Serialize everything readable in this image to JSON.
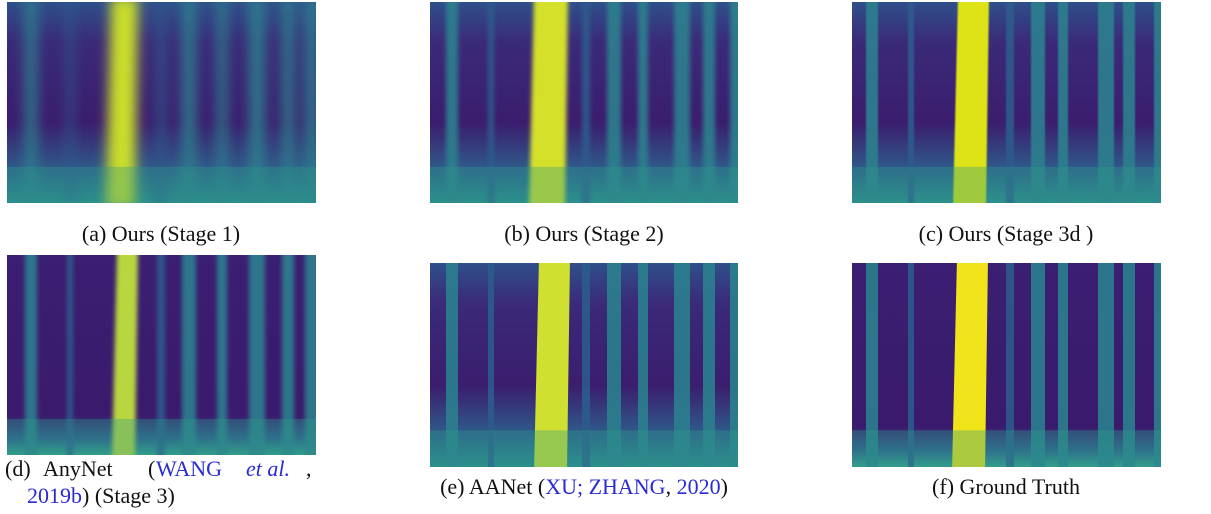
{
  "figures": [
    {
      "label": "(a)",
      "caption": [
        "Ours (Stage 1)"
      ]
    },
    {
      "label": "(b)",
      "caption": [
        "Ours (Stage 2)"
      ]
    },
    {
      "label": "(c)",
      "caption": [
        "Ours (Stage 3d )"
      ]
    },
    {
      "label": "(d)",
      "caption": [
        "AnyNet",
        "(",
        "WANG",
        "et al.",
        ",",
        "2019b",
        ") (Stage 3)"
      ]
    },
    {
      "label": "(e)",
      "caption": [
        "AANet (",
        "XU; ZHANG",
        ", ",
        "2020",
        ")"
      ]
    },
    {
      "label": "(f)",
      "caption": [
        "Ground Truth"
      ]
    }
  ]
}
